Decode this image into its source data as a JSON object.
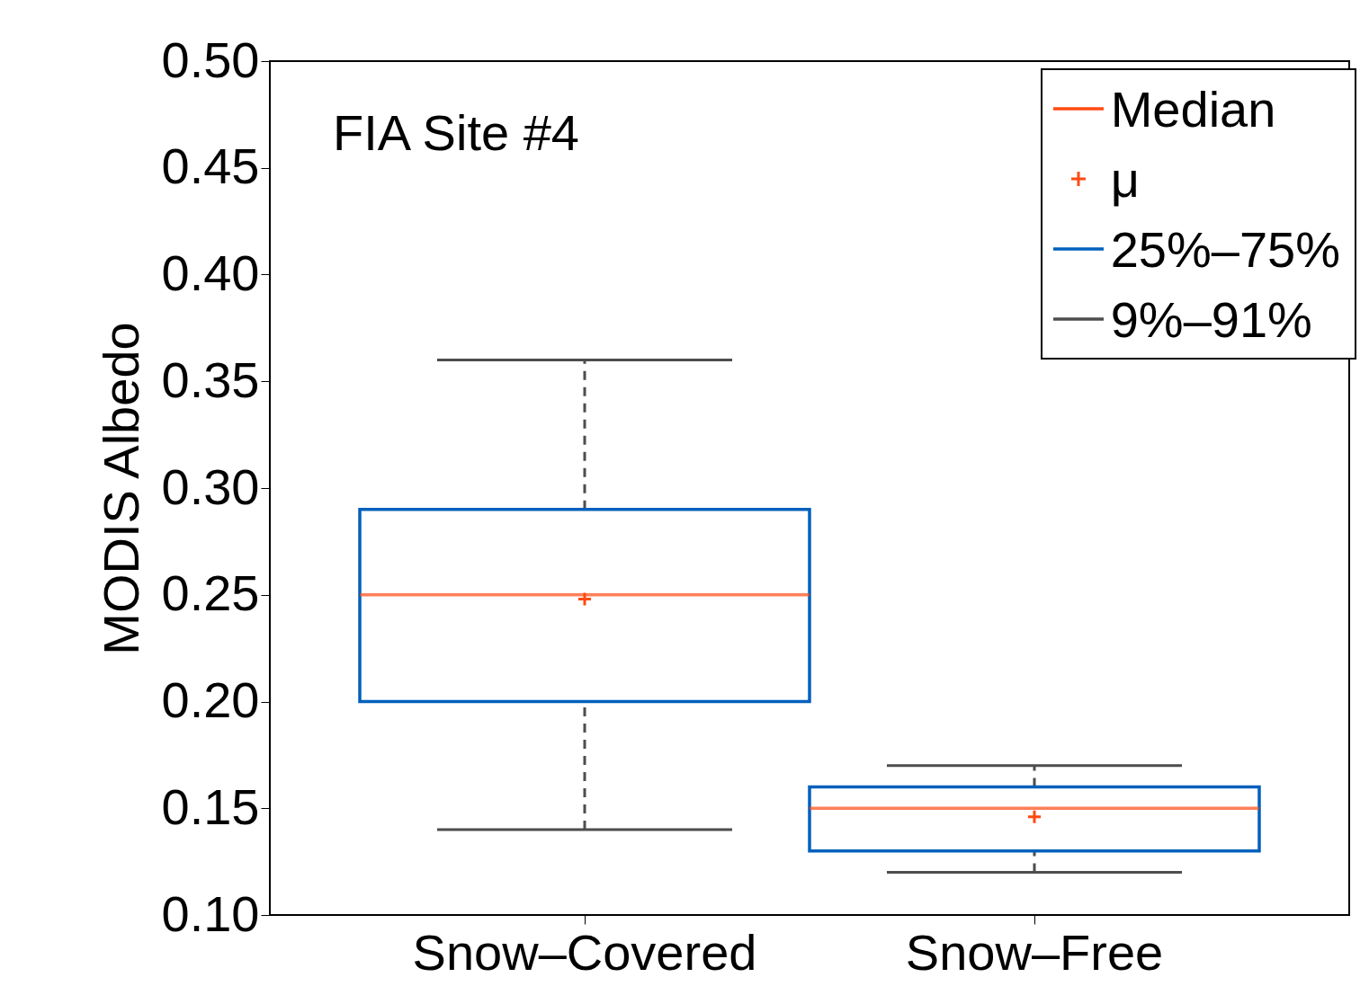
{
  "chart_data": {
    "type": "box",
    "ylabel": "MODIS Albedo",
    "categories": [
      "Snow–Covered",
      "Snow–Free"
    ],
    "boxes": [
      {
        "low": 0.14,
        "q1": 0.2,
        "median": 0.25,
        "q3": 0.29,
        "high": 0.36,
        "mean": 0.248
      },
      {
        "low": 0.12,
        "q1": 0.13,
        "median": 0.15,
        "q3": 0.16,
        "high": 0.17,
        "mean": 0.146
      }
    ],
    "ylim": [
      0.1,
      0.5
    ],
    "yticks": [
      {
        "value": 0.1,
        "label": "0.10"
      },
      {
        "value": 0.15,
        "label": "0.15"
      },
      {
        "value": 0.2,
        "label": "0.20"
      },
      {
        "value": 0.25,
        "label": "0.25"
      },
      {
        "value": 0.3,
        "label": "0.30"
      },
      {
        "value": 0.35,
        "label": "0.35"
      },
      {
        "value": 0.4,
        "label": "0.40"
      },
      {
        "value": 0.45,
        "label": "0.45"
      },
      {
        "value": 0.5,
        "label": "0.50"
      }
    ],
    "annotations": [
      "FIA Site #4",
      "Median",
      "μ",
      "25%–75%",
      "9%–91%"
    ],
    "grid": false
  }
}
